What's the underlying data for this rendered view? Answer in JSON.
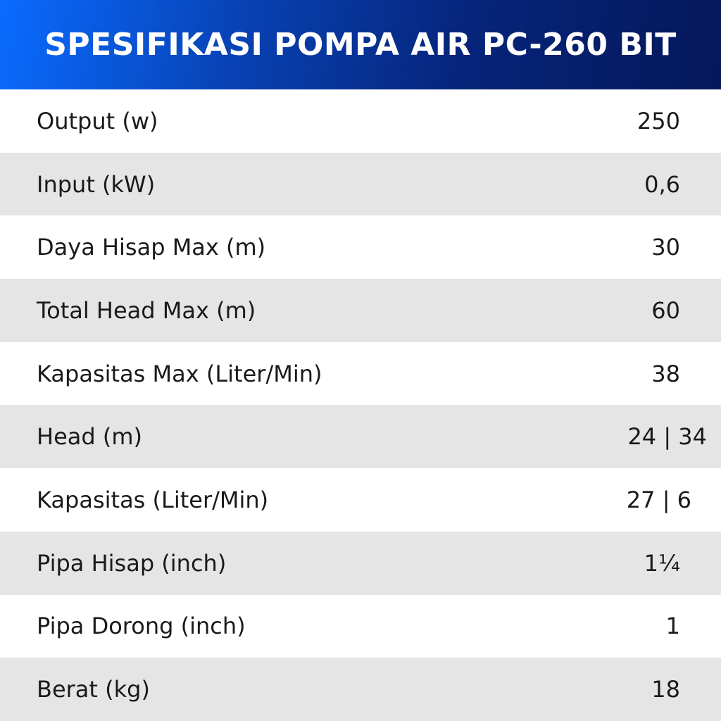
{
  "header": {
    "title": "SPESIFIKASI POMPA AIR PC-260 BIT"
  },
  "colors": {
    "header_gradient_start": "#0a6bff",
    "header_gradient_end": "#05175a",
    "row_alt": "#e5e5e5"
  },
  "specs": [
    {
      "label": "Output (w)",
      "value": "250"
    },
    {
      "label": "Input (kW)",
      "value": "0,6"
    },
    {
      "label": "Daya Hisap Max (m)",
      "value": "30"
    },
    {
      "label": "Total Head Max (m)",
      "value": "60"
    },
    {
      "label": "Kapasitas Max (Liter/Min)",
      "value": "38"
    },
    {
      "label": "Head (m)",
      "value": "24 | 34"
    },
    {
      "label": "Kapasitas (Liter/Min)",
      "value": "27 | 6"
    },
    {
      "label": "Pipa Hisap (inch)",
      "value": "1¼"
    },
    {
      "label": "Pipa Dorong (inch)",
      "value": "1"
    },
    {
      "label": "Berat (kg)",
      "value": "18"
    }
  ]
}
